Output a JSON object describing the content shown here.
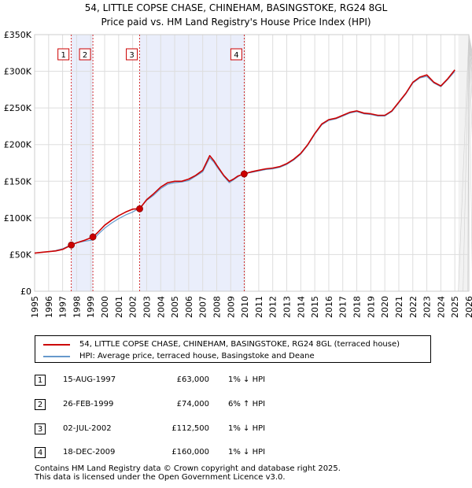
{
  "title": {
    "line1": "54, LITTLE COPSE CHASE, CHINEHAM, BASINGSTOKE, RG24 8GL",
    "line2": "Price paid vs. HM Land Registry's House Price Index (HPI)"
  },
  "chart_data": {
    "type": "line",
    "xlim": [
      1995,
      2026
    ],
    "ylim": [
      0,
      350000
    ],
    "y_ticks": [
      {
        "value": 0,
        "label": "£0"
      },
      {
        "value": 50000,
        "label": "£50K"
      },
      {
        "value": 100000,
        "label": "£100K"
      },
      {
        "value": 150000,
        "label": "£150K"
      },
      {
        "value": 200000,
        "label": "£200K"
      },
      {
        "value": 250000,
        "label": "£250K"
      },
      {
        "value": 300000,
        "label": "£300K"
      },
      {
        "value": 350000,
        "label": "£350K"
      }
    ],
    "x_ticks": [
      "1995",
      "1996",
      "1997",
      "1998",
      "1999",
      "2000",
      "2001",
      "2002",
      "2003",
      "2004",
      "2005",
      "2006",
      "2007",
      "2008",
      "2009",
      "2010",
      "2011",
      "2012",
      "2013",
      "2014",
      "2015",
      "2016",
      "2017",
      "2018",
      "2019",
      "2020",
      "2021",
      "2022",
      "2023",
      "2024",
      "2025",
      "2026"
    ],
    "grid": true,
    "ownership_bands": [
      [
        1997.62,
        1999.16
      ],
      [
        2002.5,
        2009.96
      ]
    ],
    "future_start": 2025.25,
    "series": [
      {
        "name": "54, LITTLE COPSE CHASE, CHINEHAM, BASINGSTOKE, RG24 8GL (terraced house)",
        "color": "#cc0000",
        "x": [
          1995.0,
          1995.5,
          1996.0,
          1996.5,
          1997.0,
          1997.62,
          1998.0,
          1998.5,
          1999.16,
          1999.5,
          2000.0,
          2000.5,
          2001.0,
          2001.5,
          2002.0,
          2002.5,
          2003.0,
          2003.5,
          2004.0,
          2004.5,
          2005.0,
          2005.5,
          2006.0,
          2006.5,
          2007.0,
          2007.5,
          2007.8,
          2008.0,
          2008.5,
          2008.9,
          2009.2,
          2009.5,
          2009.96,
          2010.5,
          2011.0,
          2011.5,
          2012.0,
          2012.5,
          2013.0,
          2013.5,
          2014.0,
          2014.5,
          2015.0,
          2015.5,
          2016.0,
          2016.5,
          2017.0,
          2017.5,
          2018.0,
          2018.5,
          2019.0,
          2019.5,
          2020.0,
          2020.5,
          2021.0,
          2021.5,
          2022.0,
          2022.5,
          2023.0,
          2023.5,
          2024.0,
          2024.5,
          2025.0
        ],
        "y": [
          52000,
          53000,
          54000,
          55000,
          57000,
          63000,
          66000,
          69000,
          74000,
          80000,
          90000,
          97000,
          103000,
          108000,
          112000,
          112500,
          125000,
          133000,
          142000,
          148000,
          150000,
          150000,
          153000,
          158000,
          165000,
          185000,
          178000,
          172000,
          158000,
          150000,
          153000,
          157000,
          160000,
          163000,
          165000,
          167000,
          168000,
          170000,
          174000,
          180000,
          188000,
          200000,
          215000,
          228000,
          234000,
          236000,
          240000,
          244000,
          246000,
          243000,
          242000,
          240000,
          240000,
          246000,
          258000,
          270000,
          285000,
          292000,
          295000,
          285000,
          280000,
          290000,
          302000
        ]
      },
      {
        "name": "HPI: Average price, terraced house, Basingstoke and Deane",
        "color": "#6699cc",
        "x": [
          1995.0,
          1995.5,
          1996.0,
          1996.5,
          1997.0,
          1997.62,
          1998.0,
          1998.5,
          1999.16,
          1999.5,
          2000.0,
          2000.5,
          2001.0,
          2001.5,
          2002.0,
          2002.5,
          2003.0,
          2003.5,
          2004.0,
          2004.5,
          2005.0,
          2005.5,
          2006.0,
          2006.5,
          2007.0,
          2007.5,
          2007.8,
          2008.0,
          2008.5,
          2008.9,
          2009.2,
          2009.5,
          2009.96,
          2010.5,
          2011.0,
          2011.5,
          2012.0,
          2012.5,
          2013.0,
          2013.5,
          2014.0,
          2014.5,
          2015.0,
          2015.5,
          2016.0,
          2016.5,
          2017.0,
          2017.5,
          2018.0,
          2018.5,
          2019.0,
          2019.5,
          2020.0,
          2020.5,
          2021.0,
          2021.5,
          2022.0,
          2022.5,
          2023.0,
          2023.5,
          2024.0,
          2024.5,
          2025.0
        ],
        "y": [
          52000,
          53000,
          54000,
          55500,
          58000,
          63500,
          66000,
          68000,
          70000,
          77000,
          86000,
          93000,
          99000,
          104000,
          108000,
          113500,
          124000,
          131000,
          140000,
          146000,
          148000,
          149000,
          151000,
          157000,
          163000,
          182000,
          176000,
          170000,
          157000,
          148000,
          152000,
          156000,
          161500,
          162000,
          164000,
          166000,
          167000,
          169000,
          173000,
          179000,
          187000,
          199000,
          214000,
          227000,
          233000,
          235000,
          239000,
          243000,
          245000,
          242000,
          241000,
          239000,
          239000,
          245000,
          257000,
          269000,
          284000,
          291000,
          293000,
          284000,
          279000,
          289000,
          300000
        ]
      }
    ],
    "sale_markers": [
      {
        "label": "1",
        "x": 1997.62,
        "y": 63000
      },
      {
        "label": "2",
        "x": 1999.16,
        "y": 74000
      },
      {
        "label": "3",
        "x": 2002.5,
        "y": 112500
      },
      {
        "label": "4",
        "x": 2009.96,
        "y": 160000
      }
    ]
  },
  "legend": {
    "property": "54, LITTLE COPSE CHASE, CHINEHAM, BASINGSTOKE, RG24 8GL (terraced house)",
    "hpi": "HPI: Average price, terraced house, Basingstoke and Deane"
  },
  "sales": [
    {
      "num": "1",
      "date": "15-AUG-1997",
      "price": "£63,000",
      "hpi": "1% ↓ HPI"
    },
    {
      "num": "2",
      "date": "26-FEB-1999",
      "price": "£74,000",
      "hpi": "6% ↑ HPI"
    },
    {
      "num": "3",
      "date": "02-JUL-2002",
      "price": "£112,500",
      "hpi": "1% ↓ HPI"
    },
    {
      "num": "4",
      "date": "18-DEC-2009",
      "price": "£160,000",
      "hpi": "1% ↓ HPI"
    }
  ],
  "footer": {
    "line1": "Contains HM Land Registry data © Crown copyright and database right 2025.",
    "line2": "This data is licensed under the Open Government Licence v3.0."
  }
}
